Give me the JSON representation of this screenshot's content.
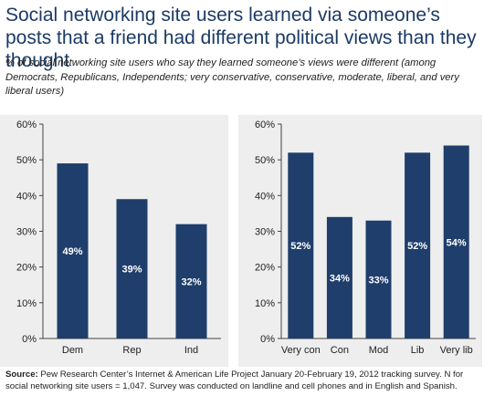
{
  "title": "Social networking site users learned via someone’s posts that a friend had different political views than they thought",
  "subtitle": "% of social networking site users who say they learned someone’s views were different (among Democrats, Republicans, Independents; very conservative, conservative, moderate, liberal, and very liberal users)",
  "source": {
    "label": "Source:",
    "text": "Pew Research Center’s Internet & American Life Project January 20-February 19, 2012 tracking survey. N for social networking site users = 1,047. Survey was conducted on landline and cell phones and in English and Spanish."
  },
  "colors": {
    "bar": "#1f3e6b",
    "panel": "#eeeeee",
    "title": "#1b3a66"
  },
  "chart_data": [
    {
      "type": "bar",
      "categories": [
        "Dem",
        "Rep",
        "Ind"
      ],
      "values": [
        49,
        39,
        32
      ],
      "value_labels": [
        "49%",
        "39%",
        "32%"
      ],
      "ylim": [
        0,
        60
      ],
      "yticks": [
        "0%",
        "10%",
        "20%",
        "30%",
        "40%",
        "50%",
        "60%"
      ],
      "grid": false
    },
    {
      "type": "bar",
      "categories": [
        "Very con",
        "Con",
        "Mod",
        "Lib",
        "Very lib"
      ],
      "values": [
        52,
        34,
        33,
        52,
        54
      ],
      "value_labels": [
        "52%",
        "34%",
        "33%",
        "52%",
        "54%"
      ],
      "ylim": [
        0,
        60
      ],
      "yticks": [
        "0%",
        "10%",
        "20%",
        "30%",
        "40%",
        "50%",
        "60%"
      ],
      "grid": false
    }
  ]
}
